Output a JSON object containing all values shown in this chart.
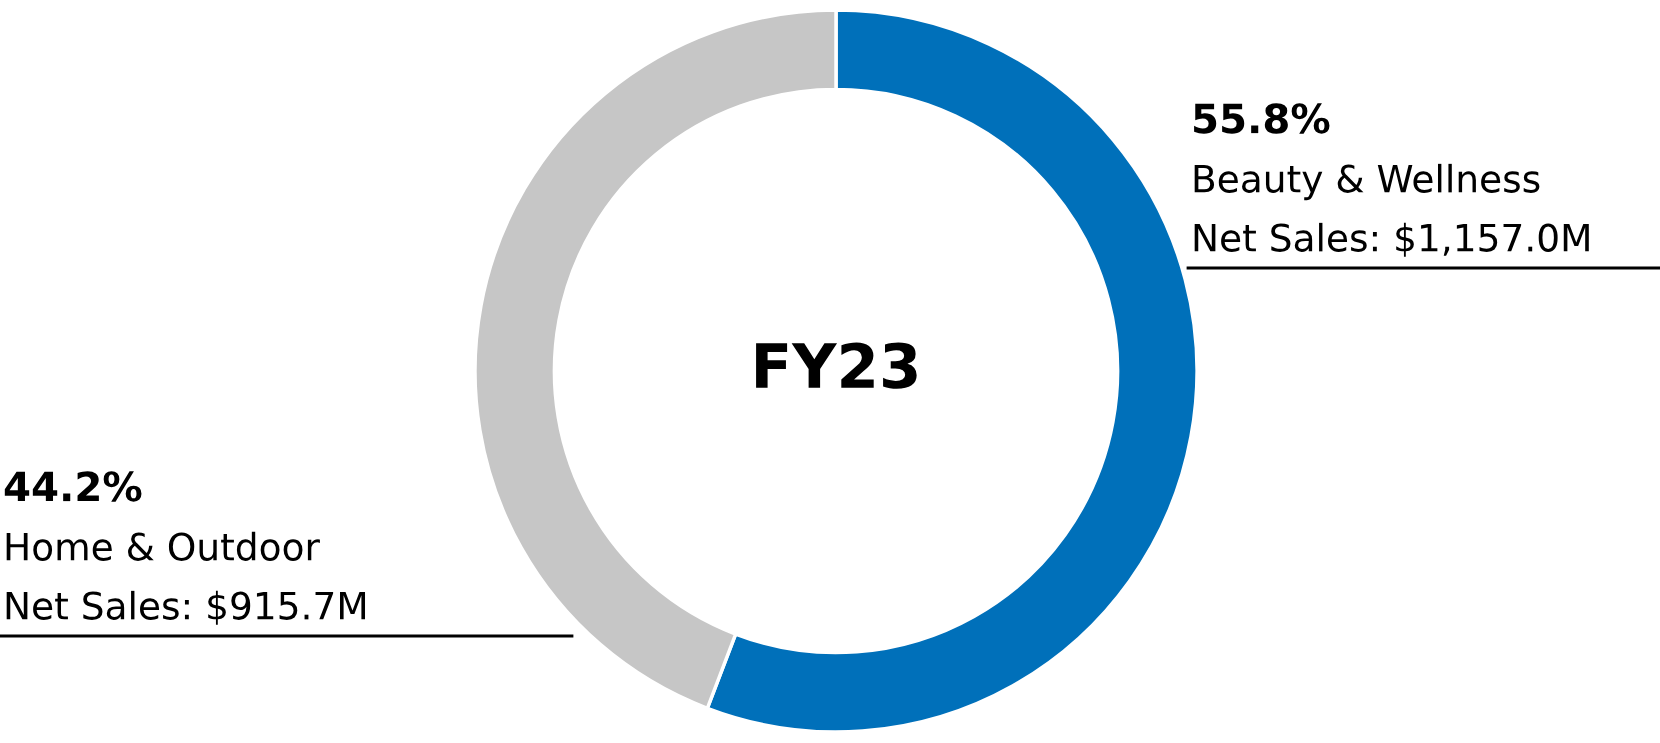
{
  "chart_data": {
    "type": "donut",
    "title": "FY23",
    "categories": [
      "Beauty & Wellness",
      "Home & Outdoor"
    ],
    "values": [
      55.8,
      44.2
    ],
    "value_labels": [
      "55.8%",
      "44.2%"
    ],
    "colors": [
      "#0070ba",
      "#c6c6c6"
    ],
    "annotations": [
      "Net Sales: $1,157.0M",
      "Net Sales: $915.7M"
    ],
    "legend": false
  }
}
